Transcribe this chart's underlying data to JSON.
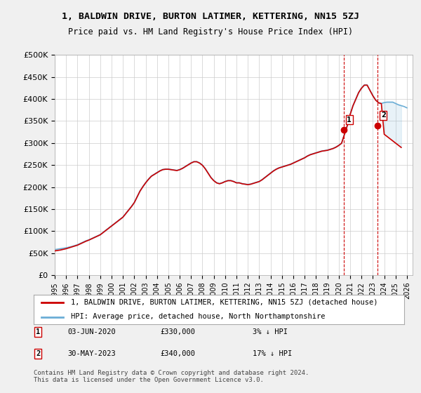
{
  "title": "1, BALDWIN DRIVE, BURTON LATIMER, KETTERING, NN15 5ZJ",
  "subtitle": "Price paid vs. HM Land Registry's House Price Index (HPI)",
  "ylabel_ticks": [
    "£0",
    "£50K",
    "£100K",
    "£150K",
    "£200K",
    "£250K",
    "£300K",
    "£350K",
    "£400K",
    "£450K",
    "£500K"
  ],
  "ytick_values": [
    0,
    50000,
    100000,
    150000,
    200000,
    250000,
    300000,
    350000,
    400000,
    450000,
    500000
  ],
  "ylim": [
    0,
    500000
  ],
  "xlim_start": 1995.0,
  "xlim_end": 2026.5,
  "hpi_color": "#6baed6",
  "price_color": "#cc0000",
  "background_color": "#f0f0f0",
  "plot_bg_color": "#ffffff",
  "grid_color": "#cccccc",
  "legend_label_price": "1, BALDWIN DRIVE, BURTON LATIMER, KETTERING, NN15 5ZJ (detached house)",
  "legend_label_hpi": "HPI: Average price, detached house, North Northamptonshire",
  "note1_num": "1",
  "note1_date": "03-JUN-2020",
  "note1_price": "£330,000",
  "note1_change": "3% ↓ HPI",
  "note2_num": "2",
  "note2_date": "30-MAY-2023",
  "note2_price": "£340,000",
  "note2_change": "17% ↓ HPI",
  "footer": "Contains HM Land Registry data © Crown copyright and database right 2024.\nThis data is licensed under the Open Government Licence v3.0.",
  "sale1_x": 2020.42,
  "sale1_y": 330000,
  "sale2_x": 2023.41,
  "sale2_y": 340000,
  "hpi_x": [
    1995.0,
    1995.25,
    1995.5,
    1995.75,
    1996.0,
    1996.25,
    1996.5,
    1996.75,
    1997.0,
    1997.25,
    1997.5,
    1997.75,
    1998.0,
    1998.25,
    1998.5,
    1998.75,
    1999.0,
    1999.25,
    1999.5,
    1999.75,
    2000.0,
    2000.25,
    2000.5,
    2000.75,
    2001.0,
    2001.25,
    2001.5,
    2001.75,
    2002.0,
    2002.25,
    2002.5,
    2002.75,
    2003.0,
    2003.25,
    2003.5,
    2003.75,
    2004.0,
    2004.25,
    2004.5,
    2004.75,
    2005.0,
    2005.25,
    2005.5,
    2005.75,
    2006.0,
    2006.25,
    2006.5,
    2006.75,
    2007.0,
    2007.25,
    2007.5,
    2007.75,
    2008.0,
    2008.25,
    2008.5,
    2008.75,
    2009.0,
    2009.25,
    2009.5,
    2009.75,
    2010.0,
    2010.25,
    2010.5,
    2010.75,
    2011.0,
    2011.25,
    2011.5,
    2011.75,
    2012.0,
    2012.25,
    2012.5,
    2012.75,
    2013.0,
    2013.25,
    2013.5,
    2013.75,
    2014.0,
    2014.25,
    2014.5,
    2014.75,
    2015.0,
    2015.25,
    2015.5,
    2015.75,
    2016.0,
    2016.25,
    2016.5,
    2016.75,
    2017.0,
    2017.25,
    2017.5,
    2017.75,
    2018.0,
    2018.25,
    2018.5,
    2018.75,
    2019.0,
    2019.25,
    2019.5,
    2019.75,
    2020.0,
    2020.25,
    2020.5,
    2020.75,
    2021.0,
    2021.25,
    2021.5,
    2021.75,
    2022.0,
    2022.25,
    2022.5,
    2022.75,
    2023.0,
    2023.25,
    2023.5,
    2023.75,
    2024.0,
    2024.25,
    2024.5,
    2024.75,
    2025.0,
    2025.25,
    2025.5,
    2025.75,
    2026.0
  ],
  "hpi_y": [
    58000,
    59000,
    60000,
    61000,
    62000,
    63500,
    65000,
    67000,
    69000,
    72000,
    75000,
    78000,
    80000,
    83000,
    86000,
    89000,
    92000,
    97000,
    102000,
    107000,
    112000,
    117000,
    122000,
    127000,
    132000,
    140000,
    148000,
    156000,
    165000,
    178000,
    191000,
    201000,
    210000,
    218000,
    225000,
    229000,
    233000,
    237000,
    240000,
    241000,
    241000,
    240000,
    239000,
    238000,
    240000,
    243000,
    247000,
    251000,
    255000,
    258000,
    258000,
    255000,
    250000,
    242000,
    232000,
    222000,
    215000,
    210000,
    208000,
    210000,
    213000,
    215000,
    215000,
    213000,
    210000,
    210000,
    208000,
    207000,
    206000,
    207000,
    209000,
    211000,
    213000,
    217000,
    222000,
    227000,
    232000,
    237000,
    241000,
    244000,
    246000,
    248000,
    250000,
    252000,
    255000,
    258000,
    261000,
    264000,
    267000,
    271000,
    274000,
    276000,
    278000,
    280000,
    282000,
    283000,
    284000,
    286000,
    288000,
    291000,
    295000,
    300000,
    320000,
    340000,
    365000,
    385000,
    400000,
    415000,
    425000,
    432000,
    432000,
    420000,
    408000,
    398000,
    392000,
    390000,
    392000,
    393000,
    393000,
    393000,
    390000,
    387000,
    385000,
    383000,
    380000
  ],
  "price_x": [
    1995.0,
    1995.25,
    1995.5,
    1995.75,
    1996.0,
    1996.25,
    1996.5,
    1996.75,
    1997.0,
    1997.25,
    1997.5,
    1997.75,
    1998.0,
    1998.25,
    1998.5,
    1998.75,
    1999.0,
    1999.25,
    1999.5,
    1999.75,
    2000.0,
    2000.25,
    2000.5,
    2000.75,
    2001.0,
    2001.25,
    2001.5,
    2001.75,
    2002.0,
    2002.25,
    2002.5,
    2002.75,
    2003.0,
    2003.25,
    2003.5,
    2003.75,
    2004.0,
    2004.25,
    2004.5,
    2004.75,
    2005.0,
    2005.25,
    2005.5,
    2005.75,
    2006.0,
    2006.25,
    2006.5,
    2006.75,
    2007.0,
    2007.25,
    2007.5,
    2007.75,
    2008.0,
    2008.25,
    2008.5,
    2008.75,
    2009.0,
    2009.25,
    2009.5,
    2009.75,
    2010.0,
    2010.25,
    2010.5,
    2010.75,
    2011.0,
    2011.25,
    2011.5,
    2011.75,
    2012.0,
    2012.25,
    2012.5,
    2012.75,
    2013.0,
    2013.25,
    2013.5,
    2013.75,
    2014.0,
    2014.25,
    2014.5,
    2014.75,
    2015.0,
    2015.25,
    2015.5,
    2015.75,
    2016.0,
    2016.25,
    2016.5,
    2016.75,
    2017.0,
    2017.25,
    2017.5,
    2017.75,
    2018.0,
    2018.25,
    2018.5,
    2018.75,
    2019.0,
    2019.25,
    2019.5,
    2019.75,
    2020.0,
    2020.25,
    2020.5,
    2020.75,
    2021.0,
    2021.25,
    2021.5,
    2021.75,
    2022.0,
    2022.25,
    2022.5,
    2022.75,
    2023.0,
    2023.25,
    2023.5,
    2023.75,
    2024.0,
    2024.25,
    2024.5,
    2024.75,
    2025.0,
    2025.25,
    2025.5
  ],
  "price_y": [
    55000,
    56000,
    57000,
    58500,
    60000,
    62000,
    64000,
    66000,
    68000,
    71000,
    74000,
    77000,
    79500,
    82500,
    85500,
    88500,
    91500,
    96500,
    101500,
    106500,
    111500,
    116500,
    121500,
    126500,
    131500,
    139500,
    147500,
    155500,
    164500,
    177500,
    190500,
    200500,
    209500,
    217500,
    224500,
    228500,
    232500,
    236500,
    239500,
    240500,
    240500,
    239500,
    238500,
    237500,
    239500,
    242500,
    246500,
    250500,
    254500,
    257500,
    257500,
    254500,
    249500,
    241500,
    231500,
    221500,
    214500,
    209500,
    207500,
    209500,
    212500,
    214500,
    214500,
    212500,
    209500,
    209500,
    207500,
    206500,
    205500,
    206500,
    208500,
    210500,
    212500,
    216500,
    221500,
    226500,
    231500,
    236500,
    240500,
    243500,
    245500,
    247500,
    249500,
    251500,
    254500,
    257500,
    260500,
    263500,
    266500,
    270500,
    273500,
    275500,
    277500,
    279500,
    281500,
    282500,
    283500,
    285500,
    287500,
    290500,
    294500,
    299500,
    319500,
    339500,
    364500,
    384500,
    399500,
    414500,
    424500,
    431500,
    431500,
    419500,
    407500,
    397500,
    391500,
    389500,
    320000,
    315000,
    310000,
    305000,
    300000,
    295000,
    290000
  ]
}
